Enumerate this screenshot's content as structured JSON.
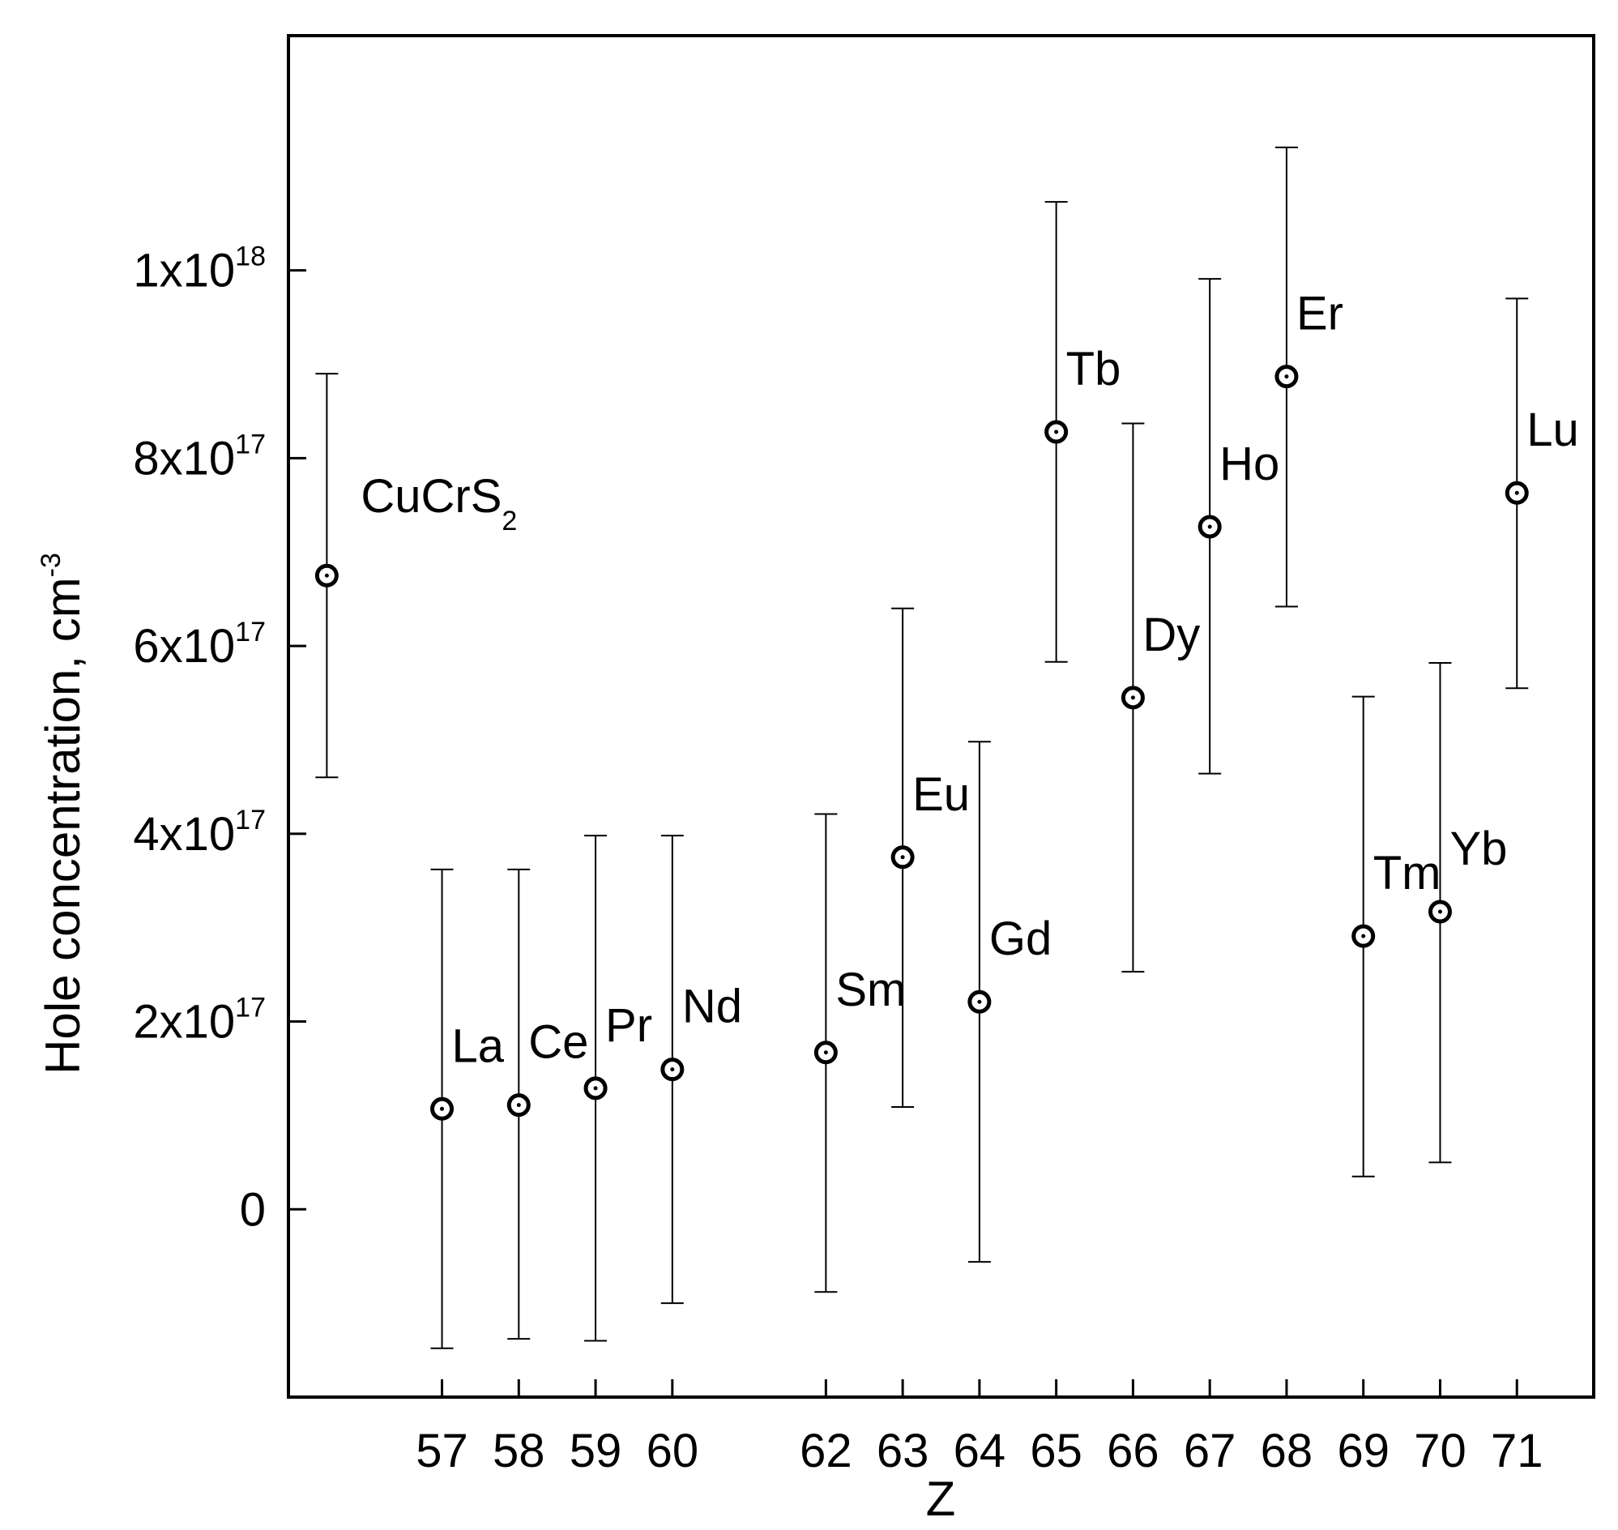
{
  "chart_data": {
    "type": "scatter",
    "title": "",
    "xlabel": "Z",
    "ylabel": {
      "main": "Hole concentration, cm",
      "superscript": "-3"
    },
    "xlim": [
      55,
      72
    ],
    "ylim": [
      -2e+17,
      1.25e+18
    ],
    "x_ticks": [
      {
        "value": 57,
        "label": "57"
      },
      {
        "value": 58,
        "label": "58"
      },
      {
        "value": 59,
        "label": "59"
      },
      {
        "value": 60,
        "label": "60"
      },
      {
        "value": 62,
        "label": "62"
      },
      {
        "value": 63,
        "label": "63"
      },
      {
        "value": 64,
        "label": "64"
      },
      {
        "value": 65,
        "label": "65"
      },
      {
        "value": 66,
        "label": "66"
      },
      {
        "value": 67,
        "label": "67"
      },
      {
        "value": 68,
        "label": "68"
      },
      {
        "value": 69,
        "label": "69"
      },
      {
        "value": 70,
        "label": "70"
      },
      {
        "value": 71,
        "label": "71"
      }
    ],
    "y_ticks": [
      {
        "value": 0,
        "mantissa": "0",
        "exponent": ""
      },
      {
        "value": 2e+17,
        "mantissa": "2x10",
        "exponent": "17"
      },
      {
        "value": 4e+17,
        "mantissa": "4x10",
        "exponent": "17"
      },
      {
        "value": 6e+17,
        "mantissa": "6x10",
        "exponent": "17"
      },
      {
        "value": 8e+17,
        "mantissa": "8x10",
        "exponent": "17"
      },
      {
        "value": 1e+18,
        "mantissa": "1x10",
        "exponent": "18"
      }
    ],
    "grid": false,
    "points": [
      {
        "label": "CuCrS",
        "label_sub": "2",
        "x": 55.5,
        "y": 6.75e+17,
        "err_low": 4.6e+17,
        "err_high": 8.9e+17
      },
      {
        "label": "La",
        "label_sub": "",
        "x": 57,
        "y": 1.07e+17,
        "err_low": -1.48e+17,
        "err_high": 3.62e+17
      },
      {
        "label": "Ce",
        "label_sub": "",
        "x": 58,
        "y": 1.11e+17,
        "err_low": -1.38e+17,
        "err_high": 3.62e+17
      },
      {
        "label": "Pr",
        "label_sub": "",
        "x": 59,
        "y": 1.29e+17,
        "err_low": -1.4e+17,
        "err_high": 3.98e+17
      },
      {
        "label": "Nd",
        "label_sub": "",
        "x": 60,
        "y": 1.49e+17,
        "err_low": -1e+17,
        "err_high": 3.98e+17
      },
      {
        "label": "Sm",
        "label_sub": "",
        "x": 62,
        "y": 1.67e+17,
        "err_low": -8.8e+16,
        "err_high": 4.21e+17
      },
      {
        "label": "Eu",
        "label_sub": "",
        "x": 63,
        "y": 3.75e+17,
        "err_low": 1.09e+17,
        "err_high": 6.4e+17
      },
      {
        "label": "Gd",
        "label_sub": "",
        "x": 64,
        "y": 2.21e+17,
        "err_low": -5.6e+16,
        "err_high": 4.98e+17
      },
      {
        "label": "Tb",
        "label_sub": "",
        "x": 65,
        "y": 8.28e+17,
        "err_low": 5.83e+17,
        "err_high": 1.073e+18
      },
      {
        "label": "Dy",
        "label_sub": "",
        "x": 66,
        "y": 5.45e+17,
        "err_low": 2.53e+17,
        "err_high": 8.37e+17
      },
      {
        "label": "Ho",
        "label_sub": "",
        "x": 67,
        "y": 7.27e+17,
        "err_low": 4.64e+17,
        "err_high": 9.91e+17
      },
      {
        "label": "Er",
        "label_sub": "",
        "x": 68,
        "y": 8.87e+17,
        "err_low": 6.42e+17,
        "err_high": 1.131e+18
      },
      {
        "label": "Tm",
        "label_sub": "",
        "x": 69,
        "y": 2.91e+17,
        "err_low": 3.5e+16,
        "err_high": 5.46e+17
      },
      {
        "label": "Yb",
        "label_sub": "",
        "x": 70,
        "y": 3.17e+17,
        "err_low": 5e+16,
        "err_high": 5.82e+17
      },
      {
        "label": "Lu",
        "label_sub": "",
        "x": 71,
        "y": 7.63e+17,
        "err_low": 5.55e+17,
        "err_high": 9.7e+17
      }
    ]
  }
}
